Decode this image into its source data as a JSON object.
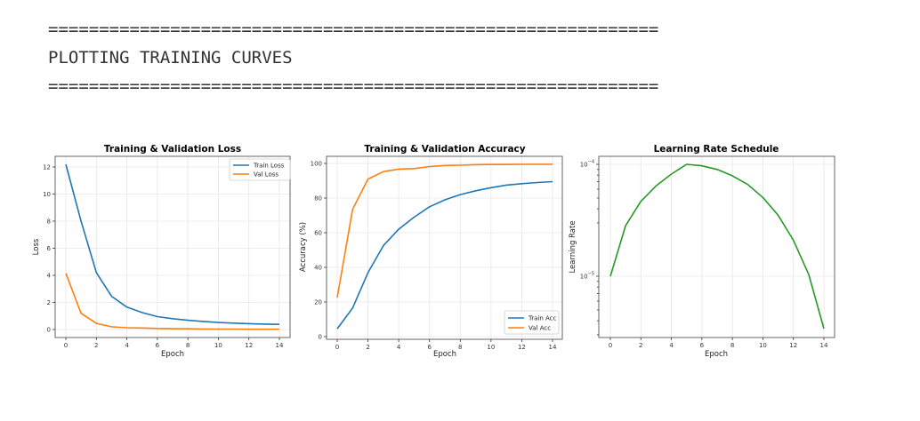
{
  "console": {
    "separator": "============================================================",
    "heading": "PLOTTING TRAINING CURVES"
  },
  "colors": {
    "train": "#1f77b4",
    "val": "#ff7f0e",
    "lr": "#259a25",
    "text": "#333333"
  },
  "chart_data": [
    {
      "type": "line",
      "title": "Training & Validation Loss",
      "xlabel": "Epoch",
      "ylabel": "Loss",
      "x": [
        0,
        1,
        2,
        3,
        4,
        5,
        6,
        7,
        8,
        9,
        10,
        11,
        12,
        13,
        14
      ],
      "xticks": [
        0,
        2,
        4,
        6,
        8,
        10,
        12,
        14
      ],
      "yticks": [
        0,
        2,
        4,
        6,
        8,
        10,
        12
      ],
      "ylim": [
        -0.6,
        12.8
      ],
      "grid": true,
      "legend_position": "upper right",
      "series": [
        {
          "name": "Train Loss",
          "color": "#1f77b4",
          "values": [
            12.2,
            8.0,
            4.2,
            2.45,
            1.65,
            1.25,
            0.95,
            0.8,
            0.68,
            0.6,
            0.52,
            0.47,
            0.43,
            0.4,
            0.38
          ]
        },
        {
          "name": "Val Loss",
          "color": "#ff7f0e",
          "values": [
            4.15,
            1.2,
            0.45,
            0.2,
            0.13,
            0.11,
            0.08,
            0.06,
            0.05,
            0.04,
            0.03,
            0.03,
            0.02,
            0.02,
            0.02
          ]
        }
      ]
    },
    {
      "type": "line",
      "title": "Training & Validation Accuracy",
      "xlabel": "Epoch",
      "ylabel": "Accuracy (%)",
      "x": [
        0,
        1,
        2,
        3,
        4,
        5,
        6,
        7,
        8,
        9,
        10,
        11,
        12,
        13,
        14
      ],
      "xticks": [
        0,
        2,
        4,
        6,
        8,
        10,
        12,
        14
      ],
      "yticks": [
        0,
        20,
        40,
        60,
        80,
        100
      ],
      "ylim": [
        -1.5,
        104
      ],
      "grid": true,
      "legend_position": "lower right",
      "series": [
        {
          "name": "Train Acc",
          "color": "#1f77b4",
          "values": [
            4.5,
            16.5,
            37,
            52.5,
            62,
            69,
            75,
            79,
            82,
            84.2,
            86,
            87.5,
            88.3,
            89,
            89.5
          ]
        },
        {
          "name": "Val Acc",
          "color": "#ff7f0e",
          "values": [
            22.5,
            73.5,
            91,
            95.3,
            96.7,
            97,
            98.2,
            98.8,
            99,
            99.3,
            99.4,
            99.4,
            99.5,
            99.5,
            99.5
          ]
        }
      ]
    },
    {
      "type": "line",
      "title": "Learning Rate Schedule",
      "xlabel": "Epoch",
      "ylabel": "Learning Rate",
      "yscale": "log",
      "x": [
        0,
        1,
        2,
        3,
        4,
        5,
        6,
        7,
        8,
        9,
        10,
        11,
        12,
        13,
        14
      ],
      "xticks": [
        0,
        2,
        4,
        6,
        8,
        10,
        12,
        14
      ],
      "yticks": [
        "10^-5",
        "10^-4"
      ],
      "ylim": [
        2.8e-06,
        0.000115
      ],
      "grid": true,
      "series": [
        {
          "name": "Learning Rate",
          "color": "#259a25",
          "values": [
            1e-05,
            2.83e-05,
            4.67e-05,
            6.41e-05,
            8.18e-05,
            0.0001,
            9.7e-05,
            9e-05,
            7.9e-05,
            6.6e-05,
            5.06e-05,
            3.5e-05,
            2.1e-05,
            1.04e-05,
            3.4e-06
          ]
        }
      ]
    }
  ]
}
